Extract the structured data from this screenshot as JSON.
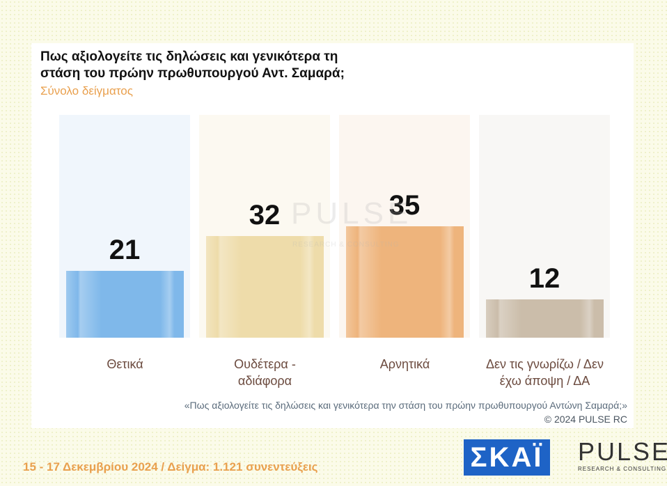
{
  "chart_data": {
    "type": "bar",
    "title": "Πως αξιολογείτε τις δηλώσεις και γενικότερα τη στάση του πρώην πρωθυπουργού Αντ. Σαμαρά;",
    "subtitle": "Σύνολο δείγματος",
    "categories": [
      "Θετικά",
      "Ουδέτερα - αδιάφορα",
      "Αρνητικά",
      "Δεν τις γνωρίζω / Δεν έχω άποψη / ΔΑ"
    ],
    "values": [
      21,
      32,
      35,
      12
    ],
    "colors": [
      "#7fb8ea",
      "#eedcaa",
      "#eeb47c",
      "#cbbdaa"
    ],
    "panel_colors": [
      "#f0f6fc",
      "#fcf9f1",
      "#fcf6f0",
      "#f8f7f5"
    ],
    "ylim": [
      0,
      70
    ],
    "footnote": "«Πως αξιολογείτε τις δηλώσεις και γενικότερα την στάση του πρώην πρωθυπουργού Αντώνη Σαμαρά;»",
    "copyright": "©  2024  PULSE RC"
  },
  "footer": {
    "date_sample": "15 - 17 Δεκεμβρίου 2024  /  Δείγμα:  1.121 συνεντεύξεις",
    "skai_logo": "ΣΚΑΪ",
    "pulse_logo": "PULSE",
    "pulse_tagline": "RESEARCH & CONSULTING"
  }
}
